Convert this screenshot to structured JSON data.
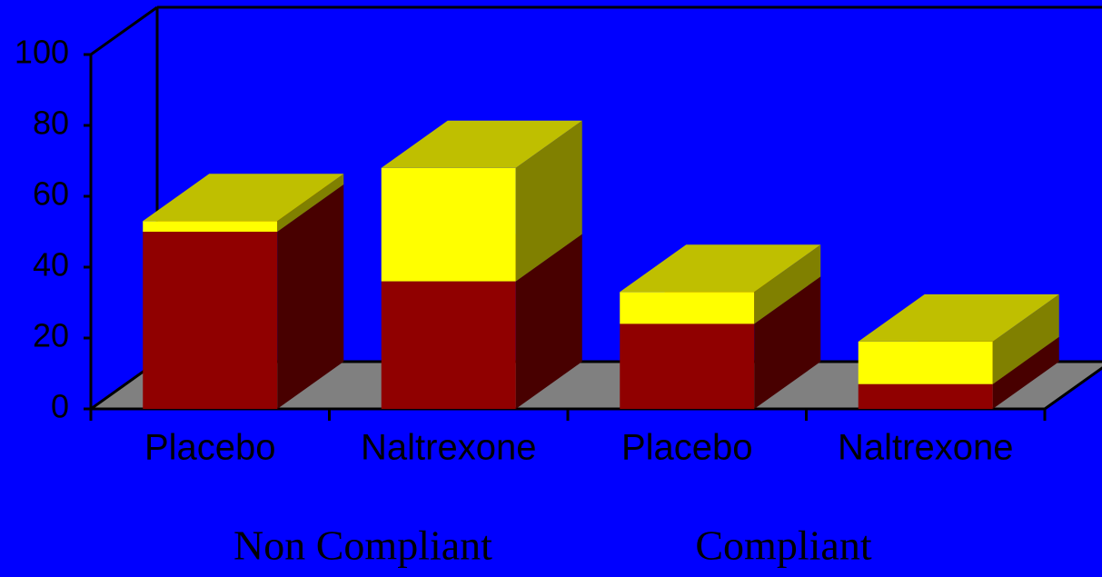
{
  "chart_data": {
    "type": "bar3d_stacked",
    "categories": [
      "Placebo",
      "Naltrexone",
      "Placebo",
      "Naltrexone"
    ],
    "group_labels": [
      "Non Compliant",
      "Compliant"
    ],
    "series": [
      {
        "color": "#900000",
        "values": [
          50,
          36,
          24,
          7
        ]
      },
      {
        "color": "#ffff00",
        "values": [
          3,
          32,
          9,
          12
        ]
      }
    ],
    "ylim": [
      0,
      100
    ],
    "yticks": [
      0,
      20,
      40,
      60,
      80,
      100
    ]
  }
}
